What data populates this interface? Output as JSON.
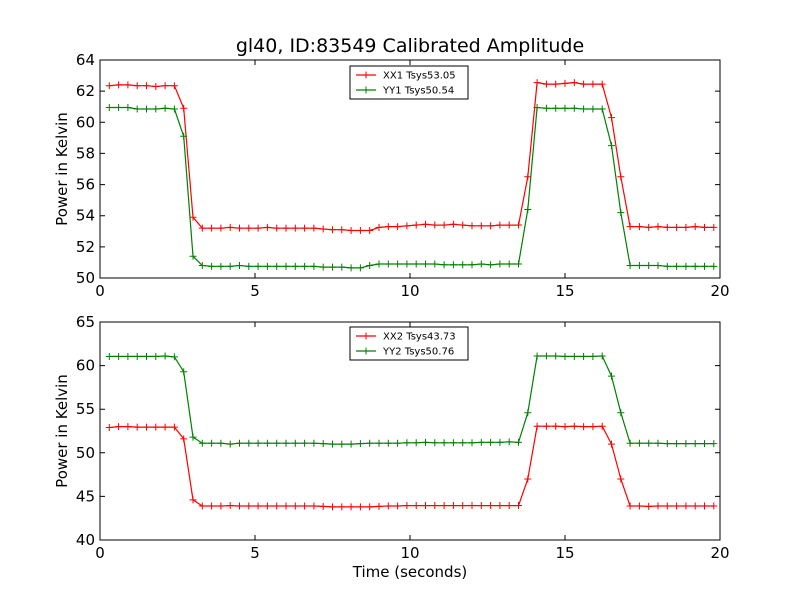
{
  "chart_data": [
    {
      "type": "line",
      "title": "gl40, ID:83549 Calibrated Amplitude",
      "xlabel": "",
      "ylabel": "Power in Kelvin",
      "xlim": [
        0,
        20
      ],
      "ylim": [
        50,
        64
      ],
      "xticks": [
        0,
        5,
        10,
        15,
        20
      ],
      "yticks": [
        50,
        52,
        54,
        56,
        58,
        60,
        62,
        64
      ],
      "grid": false,
      "legend": "top-center",
      "x": [
        0.3,
        0.6,
        0.9,
        1.2,
        1.5,
        1.8,
        2.1,
        2.4,
        2.7,
        3.0,
        3.3,
        3.6,
        3.9,
        4.2,
        4.5,
        4.8,
        5.1,
        5.4,
        5.7,
        6.0,
        6.3,
        6.6,
        6.9,
        7.2,
        7.5,
        7.8,
        8.1,
        8.4,
        8.7,
        9.0,
        9.3,
        9.6,
        9.9,
        10.2,
        10.5,
        10.8,
        11.1,
        11.4,
        11.7,
        12.0,
        12.3,
        12.6,
        12.9,
        13.2,
        13.5,
        13.8,
        14.1,
        14.4,
        14.7,
        15.0,
        15.3,
        15.6,
        15.9,
        16.2,
        16.5,
        16.8,
        17.1,
        17.4,
        17.7,
        18.0,
        18.3,
        18.6,
        18.9,
        19.2,
        19.5,
        19.8
      ],
      "series": [
        {
          "name": "XX1 Tsys53.05",
          "color": "#ff0000",
          "values": [
            62.35,
            62.4,
            62.4,
            62.35,
            62.35,
            62.3,
            62.35,
            62.35,
            60.9,
            53.9,
            53.2,
            53.2,
            53.2,
            53.25,
            53.2,
            53.2,
            53.2,
            53.25,
            53.2,
            53.2,
            53.2,
            53.2,
            53.2,
            53.15,
            53.1,
            53.1,
            53.05,
            53.05,
            53.05,
            53.25,
            53.3,
            53.3,
            53.35,
            53.4,
            53.45,
            53.4,
            53.4,
            53.45,
            53.4,
            53.35,
            53.35,
            53.35,
            53.4,
            53.4,
            53.4,
            56.5,
            62.55,
            62.45,
            62.45,
            62.5,
            62.55,
            62.45,
            62.45,
            62.45,
            60.3,
            56.5,
            53.3,
            53.3,
            53.25,
            53.3,
            53.25,
            53.25,
            53.25,
            53.3,
            53.25,
            53.25
          ]
        },
        {
          "name": "YY1 Tsys50.54",
          "color": "#008000",
          "values": [
            60.95,
            60.95,
            60.95,
            60.85,
            60.85,
            60.85,
            60.9,
            60.85,
            59.1,
            51.4,
            50.8,
            50.75,
            50.75,
            50.75,
            50.8,
            50.75,
            50.75,
            50.75,
            50.75,
            50.75,
            50.75,
            50.75,
            50.75,
            50.7,
            50.7,
            50.7,
            50.65,
            50.65,
            50.8,
            50.9,
            50.9,
            50.9,
            50.9,
            50.9,
            50.9,
            50.9,
            50.85,
            50.85,
            50.85,
            50.85,
            50.9,
            50.85,
            50.9,
            50.9,
            50.9,
            54.4,
            60.95,
            60.9,
            60.9,
            60.9,
            60.9,
            60.85,
            60.85,
            60.85,
            58.5,
            54.2,
            50.8,
            50.8,
            50.8,
            50.8,
            50.75,
            50.75,
            50.75,
            50.75,
            50.75,
            50.75
          ]
        }
      ]
    },
    {
      "type": "line",
      "title": "",
      "xlabel": "Time (seconds)",
      "ylabel": "Power in Kelvin",
      "xlim": [
        0,
        20
      ],
      "ylim": [
        40,
        65
      ],
      "xticks": [
        0,
        5,
        10,
        15,
        20
      ],
      "yticks": [
        40,
        45,
        50,
        55,
        60,
        65
      ],
      "grid": false,
      "legend": "top-center",
      "x": [
        0.3,
        0.6,
        0.9,
        1.2,
        1.5,
        1.8,
        2.1,
        2.4,
        2.7,
        3.0,
        3.3,
        3.6,
        3.9,
        4.2,
        4.5,
        4.8,
        5.1,
        5.4,
        5.7,
        6.0,
        6.3,
        6.6,
        6.9,
        7.2,
        7.5,
        7.8,
        8.1,
        8.4,
        8.7,
        9.0,
        9.3,
        9.6,
        9.9,
        10.2,
        10.5,
        10.8,
        11.1,
        11.4,
        11.7,
        12.0,
        12.3,
        12.6,
        12.9,
        13.2,
        13.5,
        13.8,
        14.1,
        14.4,
        14.7,
        15.0,
        15.3,
        15.6,
        15.9,
        16.2,
        16.5,
        16.8,
        17.1,
        17.4,
        17.7,
        18.0,
        18.3,
        18.6,
        18.9,
        19.2,
        19.5,
        19.8
      ],
      "series": [
        {
          "name": "XX2 Tsys43.73",
          "color": "#ff0000",
          "values": [
            52.9,
            53.0,
            53.0,
            52.95,
            52.95,
            52.95,
            52.95,
            52.95,
            51.6,
            44.6,
            43.9,
            43.9,
            43.9,
            43.95,
            43.9,
            43.9,
            43.9,
            43.9,
            43.9,
            43.9,
            43.9,
            43.9,
            43.9,
            43.85,
            43.8,
            43.8,
            43.8,
            43.8,
            43.8,
            43.85,
            43.9,
            43.9,
            43.95,
            43.95,
            43.95,
            43.95,
            43.95,
            43.95,
            43.95,
            43.95,
            43.95,
            43.95,
            43.95,
            43.95,
            43.95,
            47.0,
            53.05,
            53.05,
            53.05,
            53.0,
            53.05,
            53.0,
            53.0,
            53.05,
            51.0,
            47.0,
            43.9,
            43.9,
            43.85,
            43.9,
            43.9,
            43.9,
            43.9,
            43.9,
            43.9,
            43.9
          ]
        },
        {
          "name": "YY2 Tsys50.76",
          "color": "#008000",
          "values": [
            61.05,
            61.05,
            61.05,
            61.05,
            61.05,
            61.05,
            61.1,
            61.0,
            59.3,
            51.8,
            51.1,
            51.1,
            51.1,
            51.0,
            51.1,
            51.1,
            51.1,
            51.1,
            51.1,
            51.1,
            51.1,
            51.1,
            51.1,
            51.05,
            51.0,
            51.0,
            51.0,
            51.05,
            51.1,
            51.1,
            51.1,
            51.1,
            51.15,
            51.15,
            51.2,
            51.15,
            51.15,
            51.15,
            51.15,
            51.15,
            51.2,
            51.2,
            51.2,
            51.25,
            51.2,
            54.6,
            61.1,
            61.1,
            61.1,
            61.05,
            61.05,
            61.05,
            61.05,
            61.1,
            58.8,
            54.6,
            51.1,
            51.1,
            51.1,
            51.1,
            51.05,
            51.05,
            51.05,
            51.05,
            51.05,
            51.05
          ]
        }
      ]
    }
  ]
}
